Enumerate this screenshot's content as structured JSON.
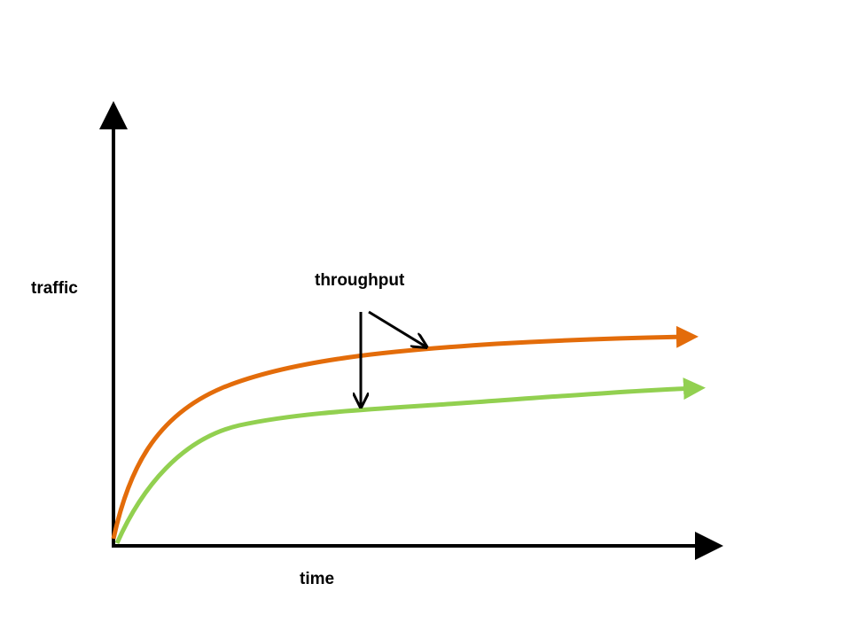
{
  "axes": {
    "y_label": "traffic",
    "x_label": "time"
  },
  "annotation": {
    "label": "throughput"
  }
}
